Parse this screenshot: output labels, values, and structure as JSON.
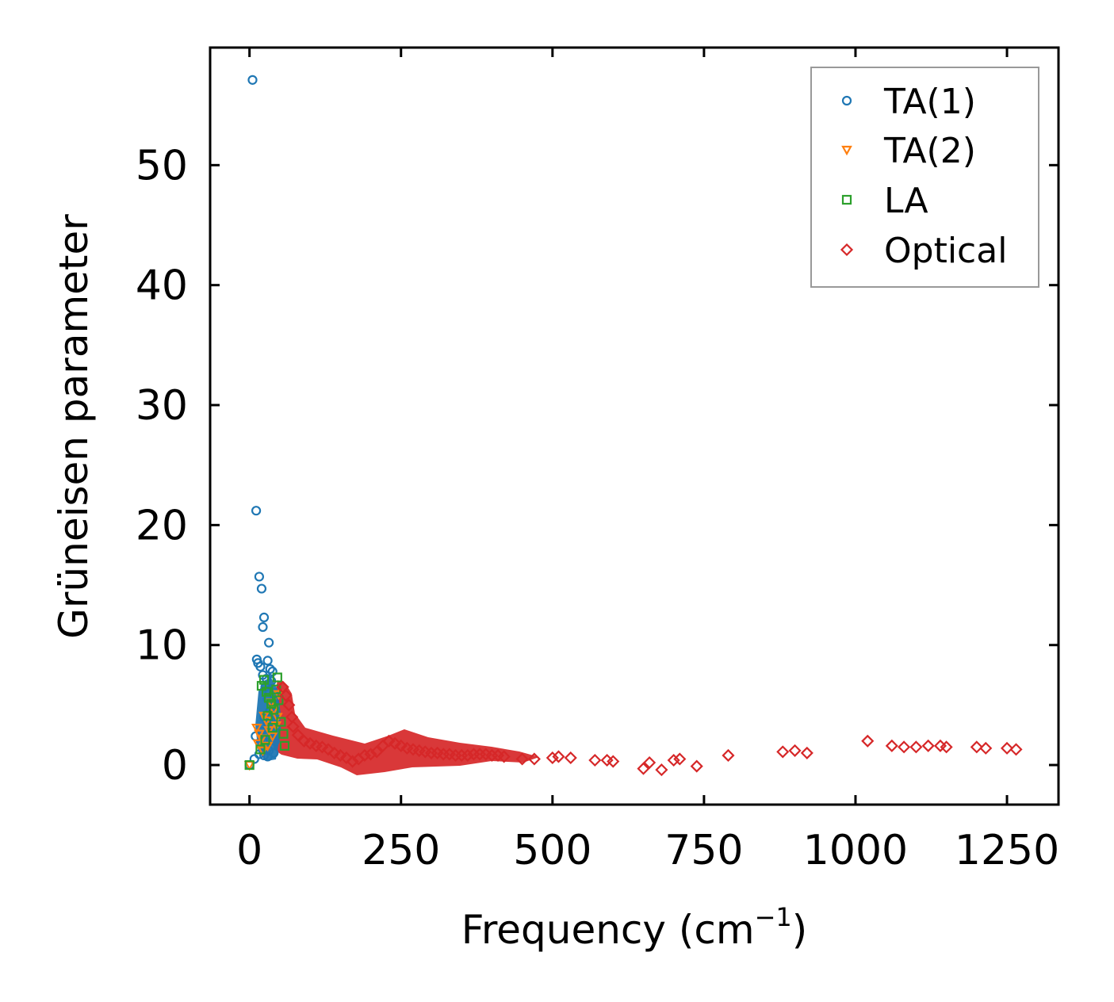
{
  "chart_data": {
    "type": "scatter",
    "title": "",
    "xlabel": "Frequency (cm",
    "xlabel_sup": "−1",
    "xlabel_close": ")",
    "ylabel": "Grüneisen parameter",
    "xlim": [
      -65,
      1335
    ],
    "ylim": [
      -3.3,
      59.8
    ],
    "xticks": [
      0,
      250,
      500,
      750,
      1000,
      1250
    ],
    "xtick_labels": [
      "0",
      "250",
      "500",
      "750",
      "1000",
      "1250"
    ],
    "yticks": [
      0,
      10,
      20,
      30,
      40,
      50
    ],
    "ytick_labels": [
      "0",
      "10",
      "20",
      "30",
      "40",
      "50"
    ],
    "grid": false,
    "legend_position": "top-right",
    "series": [
      {
        "name": "TA(1)",
        "marker": "circle",
        "color": "#1f77b4",
        "points": [
          [
            5,
            57.1
          ],
          [
            11,
            21.2
          ],
          [
            16,
            15.7
          ],
          [
            20,
            14.7
          ],
          [
            24,
            12.3
          ],
          [
            22,
            11.5
          ],
          [
            32,
            10.2
          ],
          [
            12,
            8.8
          ],
          [
            14,
            8.5
          ],
          [
            30,
            8.7
          ],
          [
            18,
            8.2
          ],
          [
            34,
            8.0
          ],
          [
            38,
            7.8
          ],
          [
            22,
            7.5
          ],
          [
            28,
            7.2
          ],
          [
            36,
            7.0
          ],
          [
            26,
            6.5
          ],
          [
            32,
            6.2
          ],
          [
            40,
            6.0
          ],
          [
            30,
            5.5
          ],
          [
            36,
            5.2
          ],
          [
            42,
            5.0
          ],
          [
            34,
            4.5
          ],
          [
            40,
            4.2
          ],
          [
            24,
            4.0
          ],
          [
            30,
            3.5
          ],
          [
            38,
            3.2
          ],
          [
            44,
            3.0
          ],
          [
            20,
            2.8
          ],
          [
            28,
            2.5
          ],
          [
            34,
            2.2
          ],
          [
            42,
            2.0
          ],
          [
            10,
            2.4
          ],
          [
            18,
            1.8
          ],
          [
            26,
            1.5
          ],
          [
            32,
            1.2
          ],
          [
            40,
            1.0
          ],
          [
            16,
            0.9
          ],
          [
            24,
            0.8
          ],
          [
            30,
            0.7
          ],
          [
            8,
            0.5
          ],
          [
            0,
            0
          ]
        ]
      },
      {
        "name": "TA(2)",
        "marker": "triangle-down",
        "color": "#ff7f0e",
        "points": [
          [
            12,
            3.1
          ],
          [
            16,
            2.6
          ],
          [
            20,
            2.2
          ],
          [
            24,
            4.1
          ],
          [
            28,
            3.7
          ],
          [
            32,
            2.9
          ],
          [
            36,
            5.2
          ],
          [
            40,
            4.6
          ],
          [
            44,
            3.3
          ],
          [
            48,
            5.9
          ],
          [
            30,
            1.6
          ],
          [
            22,
            1.2
          ],
          [
            14,
            1.8
          ],
          [
            38,
            2.4
          ],
          [
            46,
            4.0
          ],
          [
            0,
            0
          ]
        ]
      },
      {
        "name": "LA",
        "marker": "square",
        "color": "#2ca02c",
        "points": [
          [
            20,
            6.6
          ],
          [
            24,
            7.1
          ],
          [
            28,
            6.1
          ],
          [
            32,
            5.6
          ],
          [
            36,
            5.1
          ],
          [
            40,
            4.6
          ],
          [
            44,
            6.3
          ],
          [
            48,
            5.4
          ],
          [
            52,
            3.6
          ],
          [
            56,
            2.6
          ],
          [
            58,
            1.6
          ],
          [
            38,
            3.1
          ],
          [
            26,
            2.1
          ],
          [
            18,
            1.3
          ],
          [
            46,
            7.3
          ],
          [
            30,
            4.1
          ],
          [
            0,
            0
          ]
        ]
      },
      {
        "name": "Optical",
        "marker": "diamond",
        "color": "#d62728",
        "points": [
          [
            55,
            6.5
          ],
          [
            60,
            5.8
          ],
          [
            65,
            5.0
          ],
          [
            70,
            4.0
          ],
          [
            72,
            3.2
          ],
          [
            80,
            2.5
          ],
          [
            90,
            2.0
          ],
          [
            100,
            1.8
          ],
          [
            110,
            1.6
          ],
          [
            120,
            1.5
          ],
          [
            130,
            1.3
          ],
          [
            140,
            1.0
          ],
          [
            150,
            0.8
          ],
          [
            160,
            0.6
          ],
          [
            170,
            0.3
          ],
          [
            180,
            0.5
          ],
          [
            190,
            0.8
          ],
          [
            200,
            0.9
          ],
          [
            210,
            1.1
          ],
          [
            220,
            1.6
          ],
          [
            230,
            2.0
          ],
          [
            240,
            1.8
          ],
          [
            250,
            1.6
          ],
          [
            260,
            1.4
          ],
          [
            270,
            1.3
          ],
          [
            280,
            1.2
          ],
          [
            290,
            1.1
          ],
          [
            300,
            1.0
          ],
          [
            310,
            1.0
          ],
          [
            320,
            0.9
          ],
          [
            330,
            0.9
          ],
          [
            340,
            0.8
          ],
          [
            350,
            0.8
          ],
          [
            360,
            0.8
          ],
          [
            370,
            0.9
          ],
          [
            380,
            0.9
          ],
          [
            390,
            0.9
          ],
          [
            400,
            0.8
          ],
          [
            410,
            0.8
          ],
          [
            420,
            0.7
          ],
          [
            450,
            0.5
          ],
          [
            470,
            0.5
          ],
          [
            500,
            0.6
          ],
          [
            510,
            0.7
          ],
          [
            530,
            0.6
          ],
          [
            570,
            0.4
          ],
          [
            590,
            0.4
          ],
          [
            600,
            0.3
          ],
          [
            650,
            -0.3
          ],
          [
            660,
            0.2
          ],
          [
            680,
            -0.4
          ],
          [
            700,
            0.4
          ],
          [
            710,
            0.5
          ],
          [
            738,
            -0.1
          ],
          [
            790,
            0.8
          ],
          [
            880,
            1.1
          ],
          [
            900,
            1.2
          ],
          [
            920,
            1.0
          ],
          [
            1020,
            2.0
          ],
          [
            1060,
            1.6
          ],
          [
            1080,
            1.5
          ],
          [
            1100,
            1.5
          ],
          [
            1120,
            1.6
          ],
          [
            1140,
            1.6
          ],
          [
            1150,
            1.5
          ],
          [
            1200,
            1.5
          ],
          [
            1215,
            1.4
          ],
          [
            1250,
            1.4
          ],
          [
            1265,
            1.3
          ]
        ]
      }
    ]
  }
}
